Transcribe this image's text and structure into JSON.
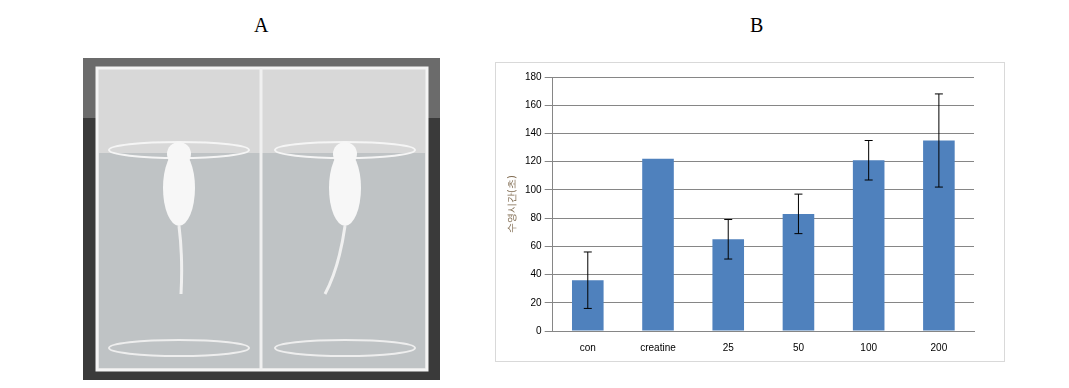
{
  "panel_labels": [
    "A",
    "B"
  ],
  "chart_data": {
    "type": "bar",
    "y_label": "수영시간(초)",
    "categories": [
      "con",
      "creatine",
      "25",
      "50",
      "100",
      "200"
    ],
    "values": [
      36,
      122,
      65,
      83,
      121,
      135
    ],
    "errors": [
      20,
      null,
      14,
      14,
      14,
      33
    ],
    "color": "#4f81bd",
    "ylim": [
      0,
      180
    ],
    "yticks": [
      0,
      20,
      40,
      60,
      80,
      100,
      120,
      140,
      160,
      180
    ],
    "grid": true
  }
}
